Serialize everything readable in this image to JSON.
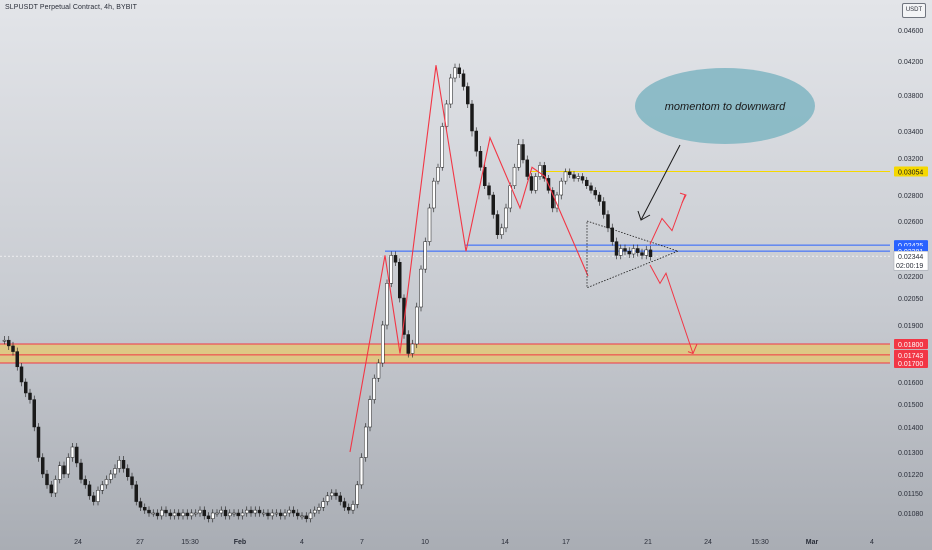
{
  "header": {
    "title": "SLPUSDT Perpetual Contract, 4h, BYBIT"
  },
  "currency": {
    "label": "USDT"
  },
  "colors": {
    "accent_red": "#f23645",
    "accent_yellow": "#f5d800",
    "accent_blue": "#2962ff",
    "support_zone": "#f5c84c",
    "candle_up": "#ffffff",
    "candle_down": "#1a1a1a",
    "callout": "#7fb5c2"
  },
  "chart_data": {
    "type": "candlestick",
    "symbol": "SLPUSDT",
    "interval": "4h",
    "exchange": "BYBIT",
    "ylim": [
      0.0105,
      0.0475
    ],
    "y_ticks": [
      "0.04600",
      "0.04200",
      "0.03800",
      "0.03400",
      "0.03200",
      "0.02800",
      "0.02600",
      "0.02200",
      "0.02050",
      "0.01900",
      "0.01600",
      "0.01500",
      "0.01400",
      "0.01300",
      "0.01220",
      "0.01150",
      "0.01080"
    ],
    "x_ticks": [
      "24",
      "27",
      "15:30",
      "Feb",
      "4",
      "7",
      "10",
      "14",
      "17",
      "21",
      "24",
      "15:30",
      "Mar",
      "4"
    ],
    "levels": [
      {
        "label": "0.03054",
        "value": 0.03054,
        "kind": "resistance"
      },
      {
        "label": "0.02425",
        "value": 0.02425,
        "kind": "triangle"
      },
      {
        "label": "0.02381",
        "value": 0.02381,
        "kind": "triangle"
      },
      {
        "label": "0.01800",
        "value": 0.018,
        "kind": "support"
      },
      {
        "label": "0.01743",
        "value": 0.01743,
        "kind": "support"
      },
      {
        "label": "0.01700",
        "value": 0.017,
        "kind": "support"
      }
    ],
    "last_price": {
      "value": "0.02344",
      "countdown": "02:00:19"
    },
    "annotation": "momentom to downward",
    "closes": [
      0.0182,
      0.0179,
      0.0176,
      0.0168,
      0.016,
      0.0155,
      0.0152,
      0.014,
      0.0128,
      0.0122,
      0.0118,
      0.0115,
      0.012,
      0.0125,
      0.0122,
      0.0128,
      0.0132,
      0.0126,
      0.012,
      0.0118,
      0.0114,
      0.0112,
      0.0116,
      0.0118,
      0.012,
      0.0122,
      0.0124,
      0.0127,
      0.0124,
      0.0121,
      0.0118,
      0.0112,
      0.011,
      0.0109,
      0.0108,
      0.0108,
      0.0107,
      0.0109,
      0.0108,
      0.0107,
      0.0108,
      0.0107,
      0.0108,
      0.0107,
      0.0108,
      0.0108,
      0.0109,
      0.0107,
      0.0106,
      0.0108,
      0.0108,
      0.0109,
      0.0107,
      0.0108,
      0.0108,
      0.0107,
      0.0108,
      0.0109,
      0.0108,
      0.0109,
      0.0108,
      0.0108,
      0.0107,
      0.0108,
      0.0108,
      0.0107,
      0.0108,
      0.0109,
      0.0108,
      0.0107,
      0.0107,
      0.0106,
      0.0108,
      0.0109,
      0.011,
      0.0112,
      0.0114,
      0.0115,
      0.0114,
      0.0112,
      0.011,
      0.0109,
      0.0111,
      0.0118,
      0.0128,
      0.014,
      0.0152,
      0.0162,
      0.017,
      0.019,
      0.0215,
      0.0235,
      0.023,
      0.0205,
      0.0185,
      0.0175,
      0.018,
      0.02,
      0.0225,
      0.0245,
      0.027,
      0.0295,
      0.031,
      0.0345,
      0.037,
      0.04,
      0.0412,
      0.0405,
      0.039,
      0.037,
      0.034,
      0.0325,
      0.031,
      0.029,
      0.028,
      0.0265,
      0.025,
      0.0255,
      0.027,
      0.029,
      0.031,
      0.033,
      0.0318,
      0.03,
      0.0285,
      0.03,
      0.0312,
      0.0298,
      0.0285,
      0.027,
      0.028,
      0.0295,
      0.0305,
      0.0302,
      0.0298,
      0.03,
      0.0296,
      0.029,
      0.0285,
      0.028,
      0.0275,
      0.0265,
      0.0255,
      0.0245,
      0.0235,
      0.024,
      0.0238,
      0.0236,
      0.024,
      0.0237,
      0.0235,
      0.0239,
      0.0234
    ]
  }
}
